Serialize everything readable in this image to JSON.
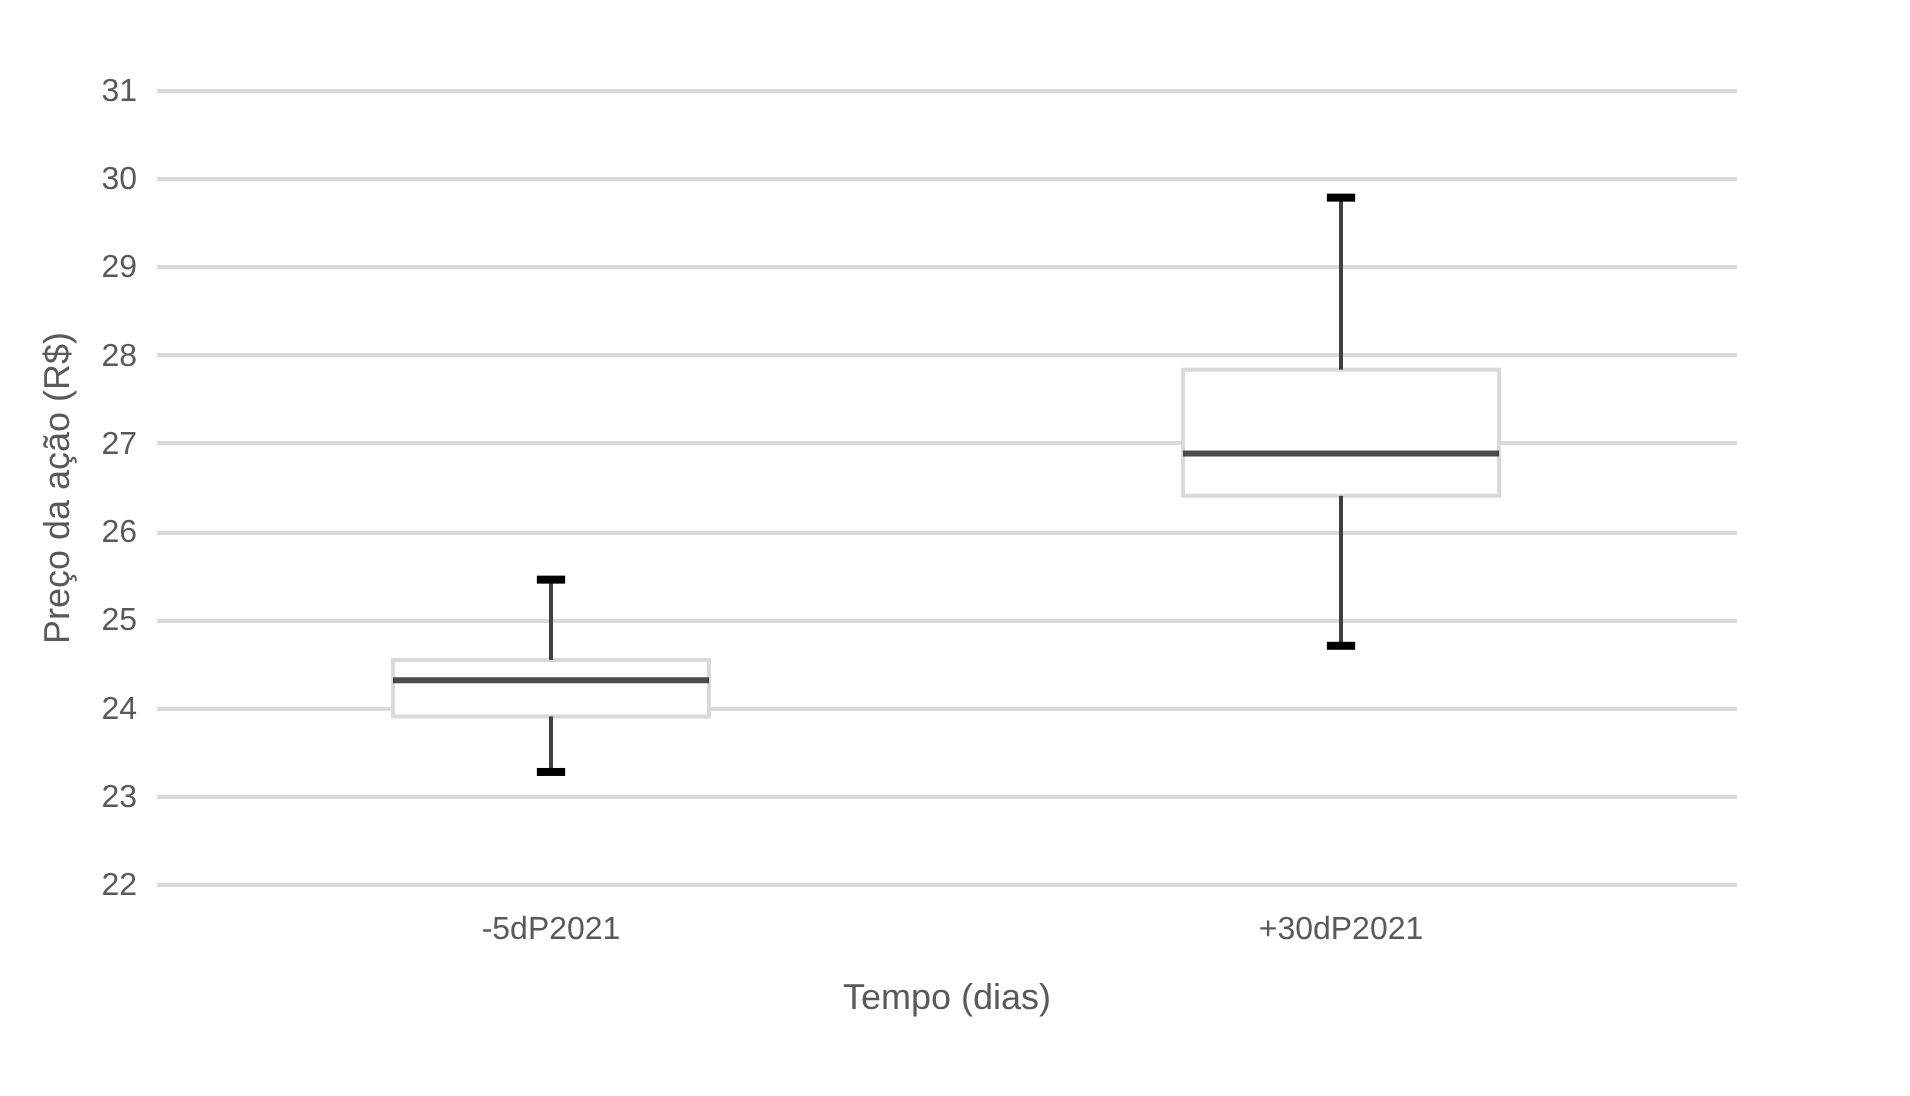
{
  "chart_data": {
    "type": "box",
    "xlabel": "Tempo (dias)",
    "ylabel": "Preço da ação (R$)",
    "categories": [
      "-5dP2021",
      "+30dP2021"
    ],
    "boxes": [
      {
        "low": 23.27,
        "q1": 23.9,
        "median": 24.31,
        "q3": 24.54,
        "high": 25.45
      },
      {
        "low": 24.7,
        "q1": 26.4,
        "median": 26.88,
        "q3": 27.83,
        "high": 29.78
      }
    ],
    "ylim": [
      22,
      31
    ],
    "yticks": [
      22,
      23,
      24,
      25,
      26,
      27,
      28,
      29,
      30,
      31
    ],
    "grid": "y"
  }
}
